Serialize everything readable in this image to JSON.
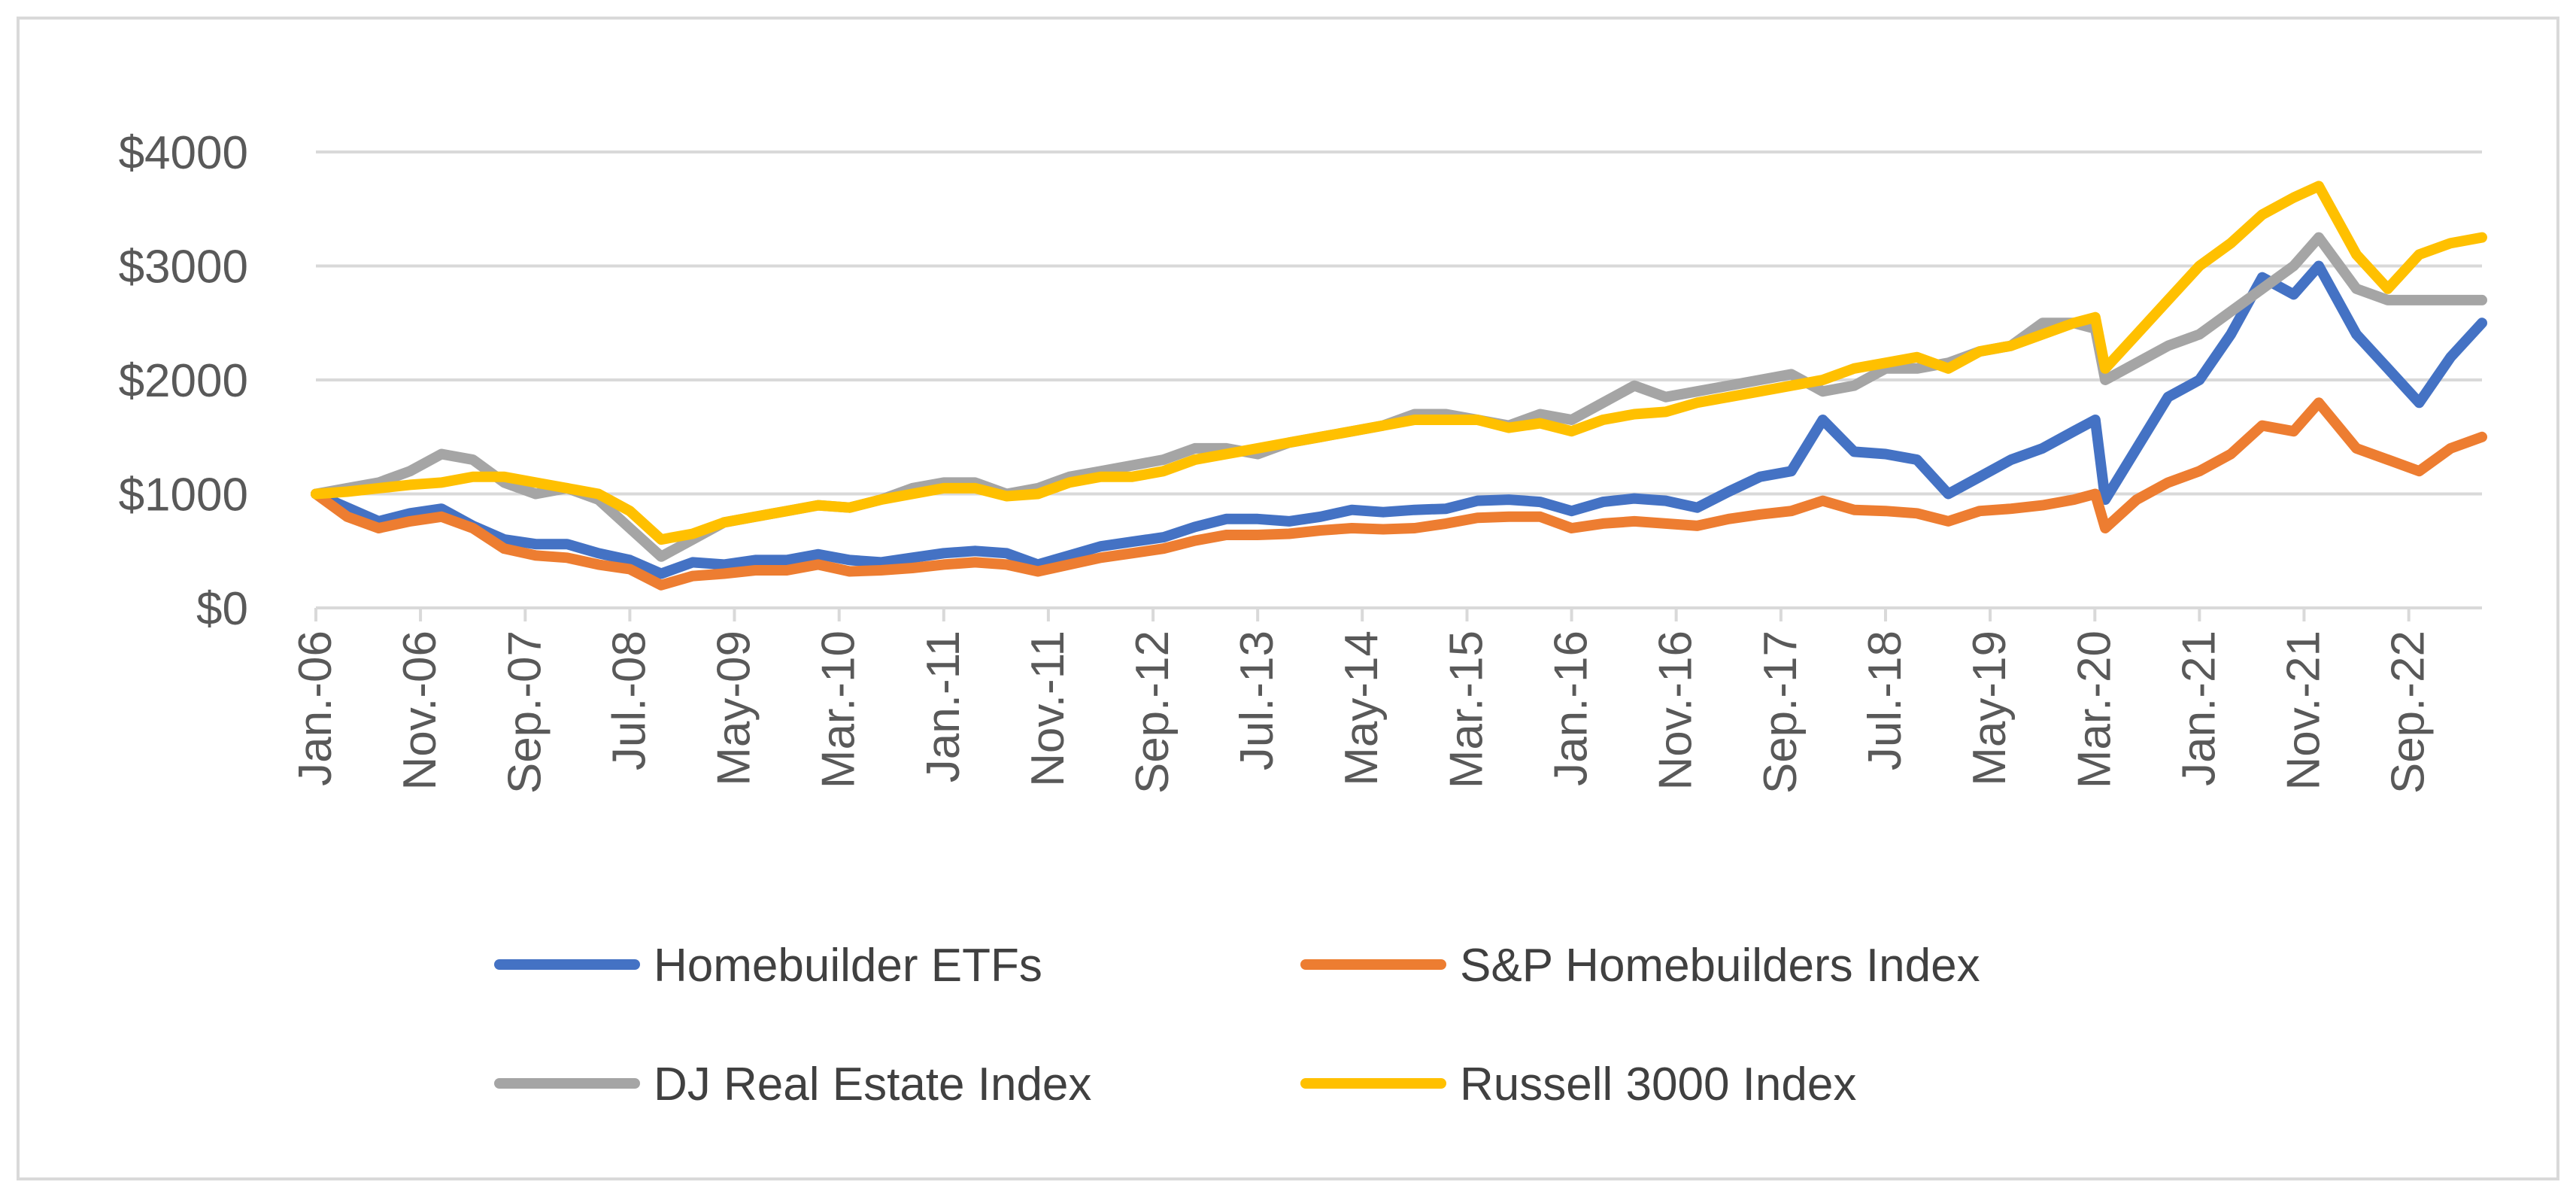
{
  "chart_data": {
    "type": "line",
    "title": "",
    "xlabel": "",
    "ylabel": "",
    "ylim": [
      0,
      4000
    ],
    "y_ticks": [
      {
        "value": 0,
        "label": "$0"
      },
      {
        "value": 1000,
        "label": "$1000"
      },
      {
        "value": 2000,
        "label": "$2000"
      },
      {
        "value": 3000,
        "label": "$3000"
      },
      {
        "value": 4000,
        "label": "$4000"
      }
    ],
    "x_range": [
      2006.0,
      2023.25
    ],
    "x_ticks": [
      {
        "value": 2006.0,
        "label": "Jan.-06"
      },
      {
        "value": 2006.833,
        "label": "Nov.-06"
      },
      {
        "value": 2007.667,
        "label": "Sep.-07"
      },
      {
        "value": 2008.5,
        "label": "Jul.-08"
      },
      {
        "value": 2009.333,
        "label": "May-09"
      },
      {
        "value": 2010.167,
        "label": "Mar.-10"
      },
      {
        "value": 2011.0,
        "label": "Jan.-11"
      },
      {
        "value": 2011.833,
        "label": "Nov.-11"
      },
      {
        "value": 2012.667,
        "label": "Sep.-12"
      },
      {
        "value": 2013.5,
        "label": "Jul.-13"
      },
      {
        "value": 2014.333,
        "label": "May-14"
      },
      {
        "value": 2015.167,
        "label": "Mar.-15"
      },
      {
        "value": 2016.0,
        "label": "Jan.-16"
      },
      {
        "value": 2016.833,
        "label": "Nov.-16"
      },
      {
        "value": 2017.667,
        "label": "Sep.-17"
      },
      {
        "value": 2018.5,
        "label": "Jul.-18"
      },
      {
        "value": 2019.333,
        "label": "May-19"
      },
      {
        "value": 2020.167,
        "label": "Mar.-20"
      },
      {
        "value": 2021.0,
        "label": "Jan.-21"
      },
      {
        "value": 2021.833,
        "label": "Nov.-21"
      },
      {
        "value": 2022.667,
        "label": "Sep.-22"
      }
    ],
    "grid": true,
    "legend_position": "bottom",
    "series": [
      {
        "name": "Homebuilder ETFs",
        "color": "#4472c4",
        "x": [
          2006.0,
          2006.25,
          2006.5,
          2006.75,
          2007.0,
          2007.25,
          2007.5,
          2007.75,
          2008.0,
          2008.25,
          2008.5,
          2008.75,
          2009.0,
          2009.25,
          2009.5,
          2009.75,
          2010.0,
          2010.25,
          2010.5,
          2010.75,
          2011.0,
          2011.25,
          2011.5,
          2011.75,
          2012.0,
          2012.25,
          2012.5,
          2012.75,
          2013.0,
          2013.25,
          2013.5,
          2013.75,
          2014.0,
          2014.25,
          2014.5,
          2014.75,
          2015.0,
          2015.25,
          2015.5,
          2015.75,
          2016.0,
          2016.25,
          2016.5,
          2016.75,
          2017.0,
          2017.25,
          2017.5,
          2017.75,
          2018.0,
          2018.25,
          2018.5,
          2018.75,
          2019.0,
          2019.25,
          2019.5,
          2019.75,
          2020.0,
          2020.17,
          2020.25,
          2020.5,
          2020.75,
          2021.0,
          2021.25,
          2021.5,
          2021.75,
          2021.95,
          2022.25,
          2022.5,
          2022.75,
          2023.0,
          2023.25
        ],
        "values": [
          1000,
          880,
          760,
          830,
          870,
          720,
          600,
          560,
          560,
          480,
          420,
          300,
          400,
          380,
          420,
          420,
          470,
          420,
          400,
          440,
          480,
          500,
          480,
          380,
          460,
          540,
          580,
          620,
          710,
          780,
          780,
          760,
          800,
          860,
          840,
          860,
          870,
          940,
          950,
          930,
          850,
          930,
          960,
          940,
          880,
          1020,
          1150,
          1200,
          1650,
          1370,
          1350,
          1300,
          1000,
          1150,
          1300,
          1400,
          1550,
          1650,
          950,
          1400,
          1850,
          2000,
          2400,
          2900,
          2750,
          3000,
          2400,
          2100,
          1800,
          2200,
          2500
        ]
      },
      {
        "name": "S&P Homebuilders Index",
        "color": "#ed7d31",
        "x": [
          2006.0,
          2006.25,
          2006.5,
          2006.75,
          2007.0,
          2007.25,
          2007.5,
          2007.75,
          2008.0,
          2008.25,
          2008.5,
          2008.75,
          2009.0,
          2009.25,
          2009.5,
          2009.75,
          2010.0,
          2010.25,
          2010.5,
          2010.75,
          2011.0,
          2011.25,
          2011.5,
          2011.75,
          2012.0,
          2012.25,
          2012.5,
          2012.75,
          2013.0,
          2013.25,
          2013.5,
          2013.75,
          2014.0,
          2014.25,
          2014.5,
          2014.75,
          2015.0,
          2015.25,
          2015.5,
          2015.75,
          2016.0,
          2016.25,
          2016.5,
          2016.75,
          2017.0,
          2017.25,
          2017.5,
          2017.75,
          2018.0,
          2018.25,
          2018.5,
          2018.75,
          2019.0,
          2019.25,
          2019.5,
          2019.75,
          2020.0,
          2020.17,
          2020.25,
          2020.5,
          2020.75,
          2021.0,
          2021.25,
          2021.5,
          2021.75,
          2021.95,
          2022.25,
          2022.5,
          2022.75,
          2023.0,
          2023.25
        ],
        "values": [
          1000,
          800,
          700,
          760,
          800,
          700,
          520,
          460,
          440,
          380,
          340,
          200,
          280,
          300,
          330,
          330,
          380,
          320,
          330,
          350,
          380,
          400,
          380,
          320,
          380,
          440,
          480,
          520,
          590,
          640,
          640,
          650,
          680,
          700,
          690,
          700,
          740,
          790,
          800,
          800,
          700,
          740,
          760,
          740,
          720,
          780,
          820,
          850,
          940,
          860,
          850,
          830,
          760,
          850,
          870,
          900,
          950,
          1000,
          700,
          950,
          1100,
          1200,
          1350,
          1600,
          1550,
          1800,
          1400,
          1300,
          1200,
          1400,
          1500
        ]
      },
      {
        "name": "DJ Real Estate Index",
        "color": "#a5a5a5",
        "x": [
          2006.0,
          2006.25,
          2006.5,
          2006.75,
          2007.0,
          2007.25,
          2007.5,
          2007.75,
          2008.0,
          2008.25,
          2008.5,
          2008.75,
          2009.0,
          2009.25,
          2009.5,
          2009.75,
          2010.0,
          2010.25,
          2010.5,
          2010.75,
          2011.0,
          2011.25,
          2011.5,
          2011.75,
          2012.0,
          2012.25,
          2012.5,
          2012.75,
          2013.0,
          2013.25,
          2013.5,
          2013.75,
          2014.0,
          2014.25,
          2014.5,
          2014.75,
          2015.0,
          2015.25,
          2015.5,
          2015.75,
          2016.0,
          2016.25,
          2016.5,
          2016.75,
          2017.0,
          2017.25,
          2017.5,
          2017.75,
          2018.0,
          2018.25,
          2018.5,
          2018.75,
          2019.0,
          2019.25,
          2019.5,
          2019.75,
          2020.0,
          2020.17,
          2020.25,
          2020.5,
          2020.75,
          2021.0,
          2021.25,
          2021.5,
          2021.75,
          2021.95,
          2022.25,
          2022.5,
          2022.75,
          2023.0,
          2023.25
        ],
        "values": [
          1000,
          1050,
          1100,
          1200,
          1350,
          1300,
          1100,
          1000,
          1050,
          950,
          700,
          450,
          600,
          750,
          800,
          850,
          900,
          880,
          950,
          1050,
          1100,
          1100,
          1000,
          1050,
          1150,
          1200,
          1250,
          1300,
          1400,
          1400,
          1350,
          1450,
          1500,
          1550,
          1600,
          1700,
          1700,
          1650,
          1600,
          1700,
          1650,
          1800,
          1950,
          1850,
          1900,
          1950,
          2000,
          2050,
          1900,
          1950,
          2100,
          2100,
          2150,
          2250,
          2300,
          2500,
          2500,
          2450,
          2000,
          2150,
          2300,
          2400,
          2600,
          2800,
          3000,
          3250,
          2800,
          2700,
          2700,
          2700,
          2700
        ]
      },
      {
        "name": "Russell 3000 Index",
        "color": "#ffc000",
        "x": [
          2006.0,
          2006.25,
          2006.5,
          2006.75,
          2007.0,
          2007.25,
          2007.5,
          2007.75,
          2008.0,
          2008.25,
          2008.5,
          2008.75,
          2009.0,
          2009.25,
          2009.5,
          2009.75,
          2010.0,
          2010.25,
          2010.5,
          2010.75,
          2011.0,
          2011.25,
          2011.5,
          2011.75,
          2012.0,
          2012.25,
          2012.5,
          2012.75,
          2013.0,
          2013.25,
          2013.5,
          2013.75,
          2014.0,
          2014.25,
          2014.5,
          2014.75,
          2015.0,
          2015.25,
          2015.5,
          2015.75,
          2016.0,
          2016.25,
          2016.5,
          2016.75,
          2017.0,
          2017.25,
          2017.5,
          2017.75,
          2018.0,
          2018.25,
          2018.5,
          2018.75,
          2019.0,
          2019.25,
          2019.5,
          2019.75,
          2020.0,
          2020.17,
          2020.25,
          2020.5,
          2020.75,
          2021.0,
          2021.25,
          2021.5,
          2021.75,
          2021.95,
          2022.25,
          2022.5,
          2022.75,
          2023.0,
          2023.25
        ],
        "values": [
          1000,
          1020,
          1050,
          1080,
          1100,
          1150,
          1150,
          1100,
          1050,
          1000,
          850,
          600,
          650,
          750,
          800,
          850,
          900,
          880,
          950,
          1000,
          1050,
          1050,
          980,
          1000,
          1100,
          1150,
          1150,
          1200,
          1300,
          1350,
          1400,
          1450,
          1500,
          1550,
          1600,
          1650,
          1650,
          1650,
          1580,
          1620,
          1550,
          1650,
          1700,
          1720,
          1800,
          1850,
          1900,
          1950,
          2000,
          2100,
          2150,
          2200,
          2100,
          2250,
          2300,
          2400,
          2500,
          2550,
          2100,
          2400,
          2700,
          3000,
          3200,
          3450,
          3600,
          3700,
          3100,
          2800,
          3100,
          3200,
          3250
        ]
      }
    ]
  }
}
